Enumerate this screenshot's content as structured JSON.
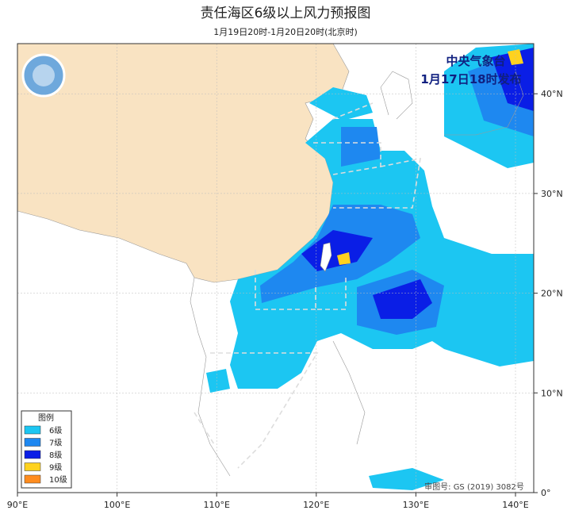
{
  "header": {
    "title": "责任海区6级以上风力预报图",
    "subtitle": "1月19日20时-1月20日20时(北京时)"
  },
  "issuer": {
    "agency": "中央气象台",
    "issued": "1月17日18时发布"
  },
  "legend": {
    "title": "图例",
    "items": [
      {
        "label": "6级",
        "color": "#1cc6f2"
      },
      {
        "label": "7级",
        "color": "#1e88f0"
      },
      {
        "label": "8级",
        "color": "#0a1ee6"
      },
      {
        "label": "9级",
        "color": "#ffd21e"
      },
      {
        "label": "10级",
        "color": "#ff8c1e"
      }
    ]
  },
  "axes": {
    "x_ticks": [
      "90°E",
      "100°E",
      "110°E",
      "120°E",
      "130°E",
      "140°E"
    ],
    "y_ticks": [
      "0°",
      "10°N",
      "20°N",
      "30°N",
      "40°N"
    ]
  },
  "map_number": "审图号: GS (2019) 3082号"
}
